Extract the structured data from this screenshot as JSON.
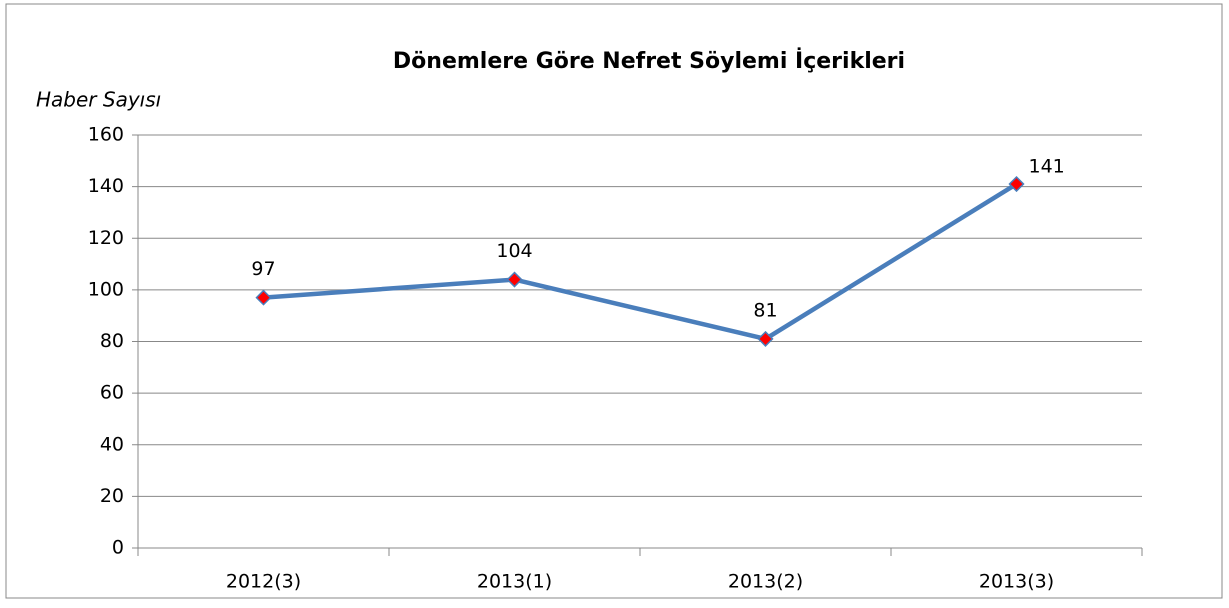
{
  "chart_data": {
    "type": "line",
    "title": "Dönemlere Göre Nefret Söylemi İçerikleri",
    "y_label": "Haber Sayısı",
    "categories": [
      "2012(3)",
      "2013(1)",
      "2013(2)",
      "2013(3)"
    ],
    "series": [
      {
        "name": "Haber Sayısı",
        "color": "#4a7ebb",
        "marker_color": "#ff0000",
        "values": [
          97,
          104,
          81,
          141
        ]
      }
    ],
    "ylim": [
      0,
      160
    ],
    "yticks": [
      0,
      20,
      40,
      60,
      80,
      100,
      120,
      140,
      160
    ],
    "grid": true
  }
}
